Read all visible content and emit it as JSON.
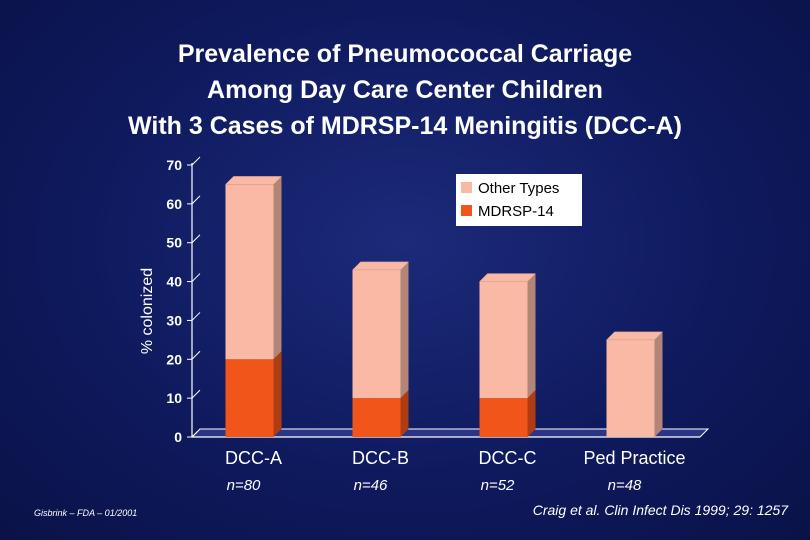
{
  "title_lines": [
    "Prevalence of Pneumococcal Carriage",
    "Among Day Care Center Children",
    "With 3 Cases of MDRSP-14 Meningitis (DCC-A)"
  ],
  "footer": {
    "left": "Gisbrink – FDA – 01/2001",
    "right": "Craig et al. Clin Infect Dis 1999; 29: 1257"
  },
  "colors": {
    "other_types": "#f9b9a4",
    "mdrsp14": "#f2551a",
    "axis": "#ffffff"
  },
  "chart_data": {
    "type": "bar",
    "stacked": true,
    "title": "Prevalence of Pneumococcal Carriage Among Day Care Center Children With 3 Cases of MDRSP-14 Meningitis (DCC-A)",
    "xlabel": "",
    "ylabel": "% colonized",
    "ylim": [
      0,
      70
    ],
    "yticks": [
      0,
      10,
      20,
      30,
      40,
      50,
      60,
      70
    ],
    "categories": [
      "DCC-A",
      "DCC-B",
      "DCC-C",
      "Ped Practice"
    ],
    "sublabels": [
      "n=80",
      "n=46",
      "n=52",
      "n=48"
    ],
    "legend_position": "top-right",
    "series": [
      {
        "name": "MDRSP-14",
        "values": [
          20,
          10,
          10,
          0
        ]
      },
      {
        "name": "Other Types",
        "values": [
          45,
          33,
          30,
          25
        ]
      }
    ],
    "legend": [
      "Other Types",
      "MDRSP-14"
    ]
  }
}
